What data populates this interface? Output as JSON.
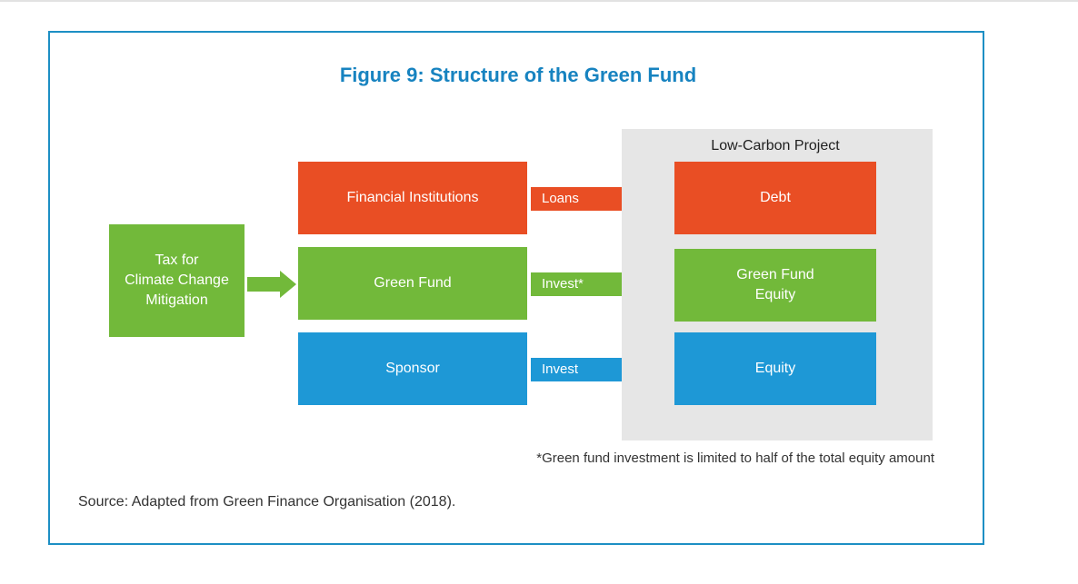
{
  "figure": {
    "title": "Figure 9: Structure of the Green Fund",
    "source": "Source: Adapted from Green Finance Organisation (2018).",
    "footnote": "*Green fund investment is limited to half of the total equity amount"
  },
  "tax_box": {
    "lines": [
      "Tax for",
      "Climate Change",
      "Mitigation"
    ]
  },
  "providers": [
    {
      "label": "Financial Institutions",
      "arrow_label": "Loans",
      "color": "#e94e24"
    },
    {
      "label": "Green Fund",
      "arrow_label": "Invest*",
      "color": "#72b93a"
    },
    {
      "label": "Sponsor",
      "arrow_label": "Invest",
      "color": "#1e98d6"
    }
  ],
  "project": {
    "title": "Low-Carbon Project",
    "components": [
      {
        "lines": [
          "Debt"
        ],
        "color": "#e94e24"
      },
      {
        "lines": [
          "Green Fund",
          "Equity"
        ],
        "color": "#72b93a"
      },
      {
        "lines": [
          "Equity"
        ],
        "color": "#1e98d6"
      }
    ]
  },
  "colors": {
    "accent": "#1d8fc4",
    "title": "#1783c0",
    "panel": "#e6e6e6"
  }
}
